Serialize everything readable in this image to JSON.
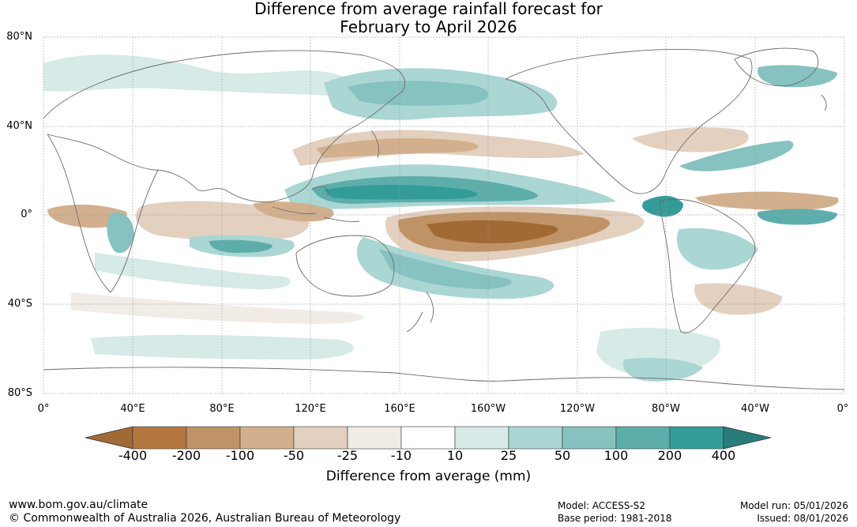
{
  "title": {
    "line1": "Difference from average rainfall forecast for",
    "line2": "February to April 2026"
  },
  "map": {
    "lat_labels": [
      "80°N",
      "40°N",
      "0°",
      "40°S",
      "80°S"
    ],
    "lon_labels": [
      "0°",
      "40°E",
      "80°E",
      "120°E",
      "160°E",
      "160°W",
      "120°W",
      "80°W",
      "40°W",
      "0°"
    ]
  },
  "legend": {
    "ticks": [
      "-400",
      "-200",
      "-100",
      "-50",
      "-25",
      "-10",
      "10",
      "25",
      "50",
      "100",
      "200",
      "400"
    ],
    "colors": [
      "#a06a36",
      "#b3773f",
      "#c09366",
      "#d2b08e",
      "#e3d0bf",
      "#f2ece6",
      "#ffffff",
      "#d6eae8",
      "#aad6d3",
      "#86c2c0",
      "#5daeab",
      "#349c98",
      "#287d7a"
    ],
    "label": "Difference from average (mm)"
  },
  "footer": {
    "url": "www.bom.gov.au/climate",
    "copyright": "© Commonwealth of Australia 2026, Australian Bureau of Meteorology",
    "model": "Model: ACCESS-S2",
    "base_period": "Base period: 1981-2018",
    "model_run": "Model run: 05/01/2026",
    "issued": "Issued: 08/01/2026"
  }
}
